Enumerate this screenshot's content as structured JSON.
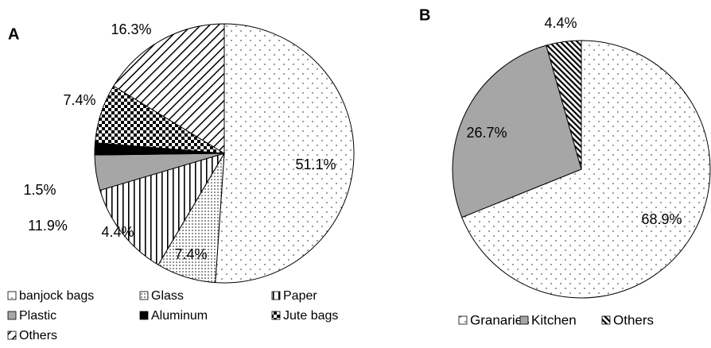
{
  "chart_data": [
    {
      "type": "pie",
      "title": "A",
      "categories": [
        "banjock bags",
        "Glass",
        "Paper",
        "Plastic",
        "Aluminum",
        "Jute bags",
        "Others"
      ],
      "values": [
        51.1,
        7.4,
        11.9,
        4.4,
        1.5,
        7.4,
        16.3
      ],
      "value_labels": [
        "51.1%",
        "7.4%",
        "11.9%",
        "4.4%",
        "1.5%",
        "7.4%",
        "16.3%"
      ],
      "patterns": [
        "dots",
        "fine-dots",
        "vertical",
        "gray",
        "black",
        "checker",
        "diagonal"
      ]
    },
    {
      "type": "pie",
      "title": "B",
      "categories": [
        "Granaries",
        "Kitchen",
        "Others"
      ],
      "values": [
        68.9,
        26.7,
        4.4
      ],
      "value_labels": [
        "68.9%",
        "26.7%",
        "4.4%"
      ],
      "patterns": [
        "dots",
        "gray",
        "diagonal-dense"
      ]
    }
  ]
}
